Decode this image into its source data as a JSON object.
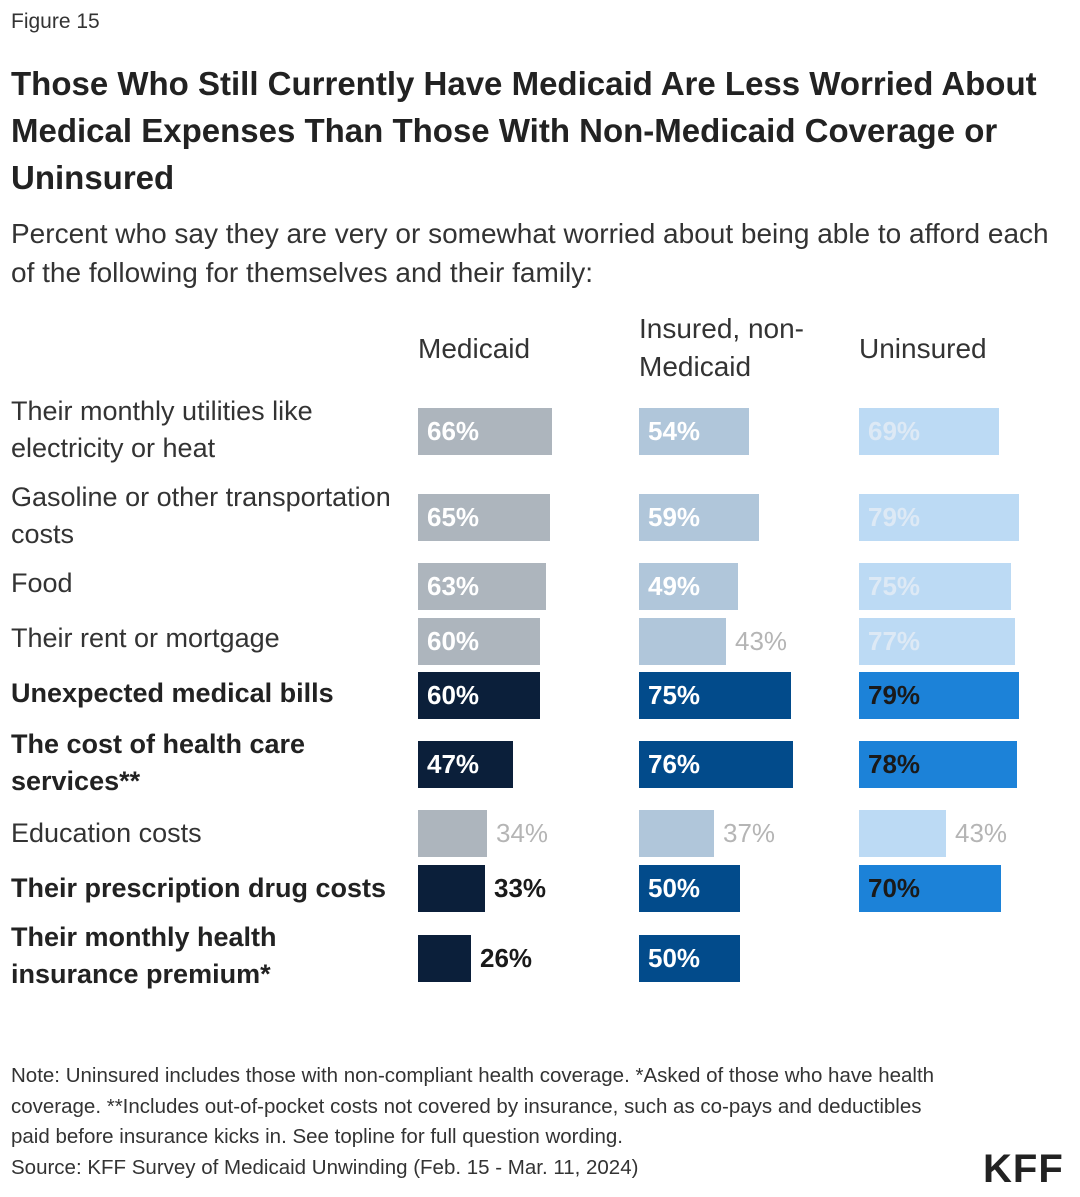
{
  "figure_label": "Figure 15",
  "title": "Those Who Still Currently Have Medicaid Are Less Worried About Medical Expenses Than Those With Non-Medicaid Coverage or Uninsured",
  "subtitle": "Percent who say they are very or somewhat worried about being able to afford each of the following for themselves and their family:",
  "note": "Note: Uninsured includes those with non-compliant health coverage. *Asked of those who have health coverage. **Includes out-of-pocket costs not covered by insurance, such as co-pays and deductibles paid before insurance kicks in. See topline for full question wording.",
  "source": "Source: KFF Survey of Medicaid Unwinding (Feb. 15 - Mar. 11, 2024)",
  "logo": "KFF",
  "colors": {
    "medicaid_muted": "#adb5bd",
    "medicaid_strong": "#0b1f3a",
    "insured_muted": "#b0c6da",
    "insured_strong": "#024b8b",
    "uninsured_muted": "#bcdaf4",
    "uninsured_strong": "#1c82d8",
    "label_light": "#ffffff",
    "label_dark_on_light": "#1a1a1a",
    "label_outside_muted": "#b5b5b5",
    "label_outside_strong": "#1a1a1a"
  },
  "chart_data": {
    "type": "bar",
    "orientation": "horizontal",
    "xlim": [
      0,
      100
    ],
    "unit": "%",
    "categories": [
      "Their monthly utilities like electricity or heat",
      "Gasoline or other transportation costs",
      "Food",
      "Their rent or mortgage",
      "Unexpected medical bills",
      "The cost of health care services**",
      "Education costs",
      "Their prescription drug costs",
      "Their monthly health insurance premium*"
    ],
    "highlighted": [
      false,
      false,
      false,
      false,
      true,
      true,
      false,
      true,
      true
    ],
    "series": [
      {
        "name": "Medicaid",
        "values": [
          66,
          65,
          63,
          60,
          60,
          47,
          34,
          33,
          26
        ]
      },
      {
        "name": "Insured, non-Medicaid",
        "values": [
          54,
          59,
          49,
          43,
          75,
          76,
          37,
          50,
          50
        ]
      },
      {
        "name": "Uninsured",
        "values": [
          69,
          79,
          75,
          77,
          79,
          78,
          43,
          70,
          null
        ]
      }
    ]
  }
}
